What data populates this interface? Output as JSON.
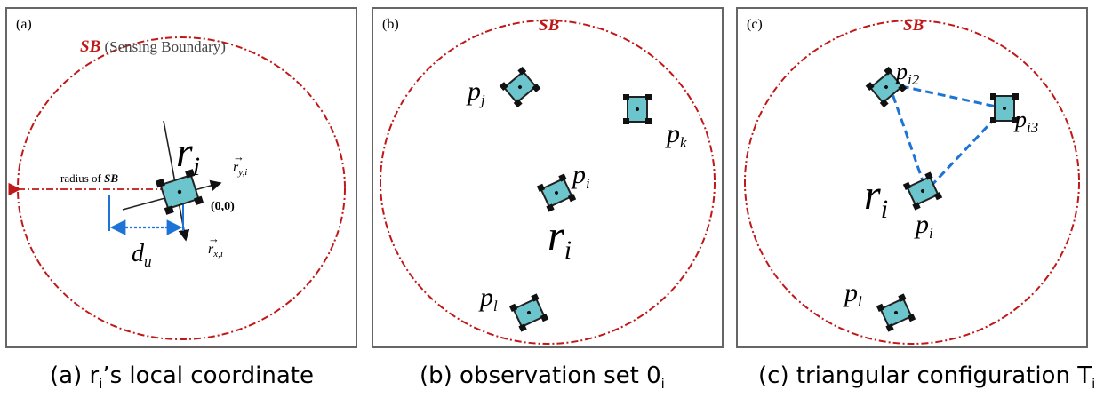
{
  "panels": [
    {
      "tag": "(a)",
      "sb_abbr": "SB",
      "sb_full": "(Sensing Boundary)",
      "robot_label": "r",
      "robot_sub": "i",
      "vec_y": "r",
      "vec_y_sub": "y,i",
      "vec_x": "r",
      "vec_x_sub": "x,i",
      "origin": "(0,0)",
      "radius_text": "radius of ",
      "radius_sb": "SB",
      "d_label": "d",
      "d_sub": "u"
    },
    {
      "tag": "(b)",
      "sb_abbr": "SB",
      "robot_label": "r",
      "robot_sub": "i",
      "pj": "p",
      "pj_sub": "j",
      "pk": "p",
      "pk_sub": "k",
      "pi": "p",
      "pi_sub": "i",
      "pl": "p",
      "pl_sub": "l"
    },
    {
      "tag": "(c)",
      "sb_abbr": "SB",
      "robot_label": "r",
      "robot_sub": "i",
      "pi2": "p",
      "pi2_sub": "i2",
      "pi3": "p",
      "pi3_sub": "i3",
      "pi": "p",
      "pi_sub": "i",
      "pl": "p",
      "pl_sub": "l"
    }
  ],
  "captions": [
    {
      "pre": "(a) r",
      "sub": "i",
      "post": "’s local coordinate"
    },
    {
      "pre": "(b) observation set 0",
      "sub": "i",
      "post": ""
    },
    {
      "pre": "(c) triangular configuration T",
      "sub": "i",
      "post": ""
    }
  ],
  "colors": {
    "boundary": "#c01818",
    "robot_body": "#6cc4cc",
    "robot_wheel": "#111111",
    "dim_line": "#1e73d6",
    "triangle_edge": "#1e73d6",
    "frame": "#666666"
  },
  "icons": {
    "robot": "mobile-robot-icon"
  }
}
